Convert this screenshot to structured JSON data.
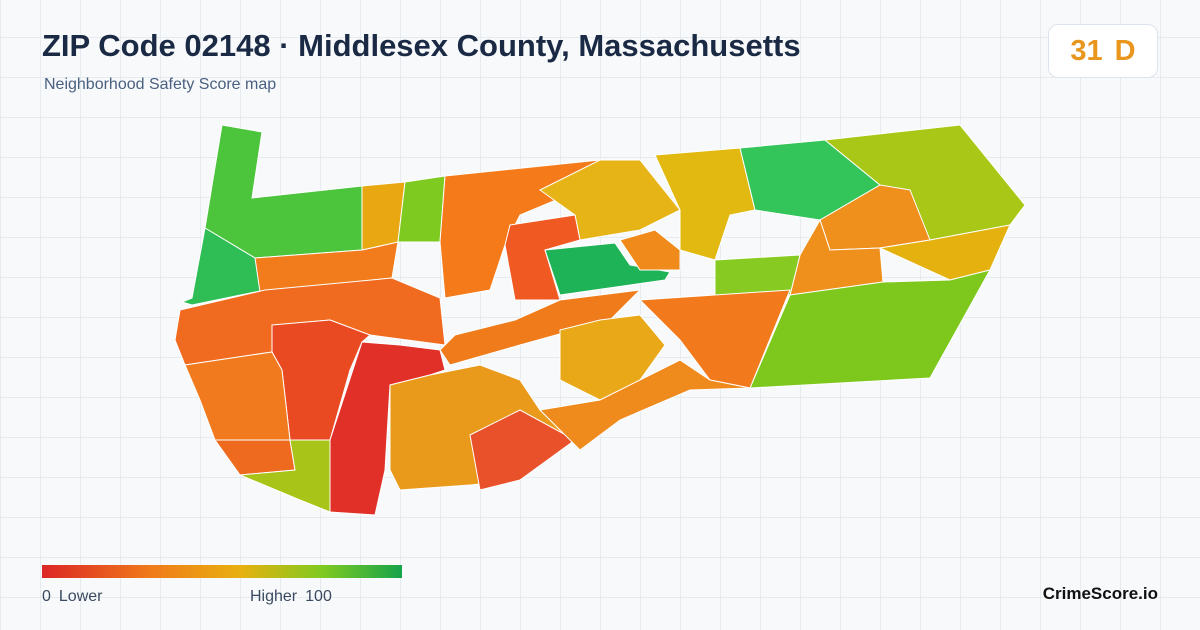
{
  "header": {
    "title": "ZIP Code 02148 · Middlesex County, Massachusetts",
    "subtitle": "Neighborhood Safety Score map"
  },
  "score": {
    "value": 31,
    "grade": "D"
  },
  "legend": {
    "min": 0,
    "min_label": "Lower",
    "max_label": "Higher",
    "max": 100
  },
  "brand": "CrimeScore.io"
}
